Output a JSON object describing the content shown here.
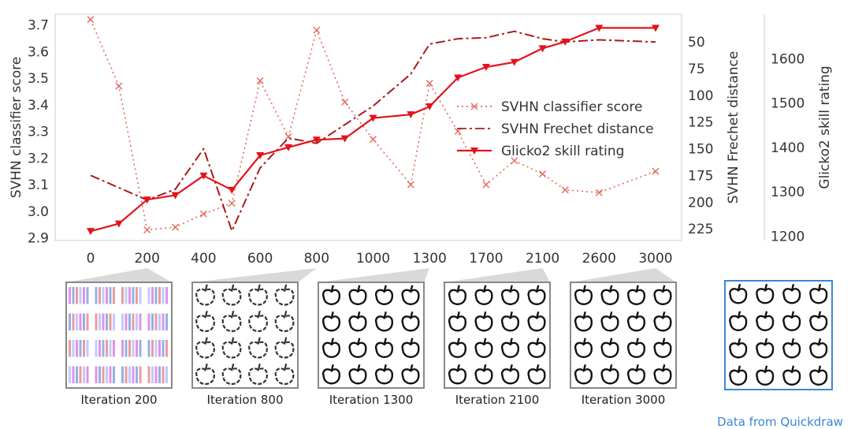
{
  "chart_data": {
    "type": "line",
    "xlabel": "",
    "x_ticks": [
      0,
      200,
      400,
      600,
      800,
      1000,
      1300,
      1700,
      2100,
      2600,
      3000
    ],
    "x_tick_labels": [
      "0",
      "200",
      "400",
      "600",
      "800",
      "1000",
      "1300",
      "1700",
      "2100",
      "2600",
      "3000"
    ],
    "axes": {
      "left": {
        "label": "SVHN classifier score",
        "ylim": [
          2.89,
          3.74
        ],
        "ticks": [
          2.9,
          3.0,
          3.1,
          3.2,
          3.3,
          3.4,
          3.5,
          3.6,
          3.7
        ],
        "tick_labels": [
          "2.9",
          "3.0",
          "3.1",
          "3.2",
          "3.3",
          "3.4",
          "3.5",
          "3.6",
          "3.7"
        ]
      },
      "right1": {
        "label": "SVHN Frechet distance",
        "ylim": [
          236,
          24
        ],
        "inverted": true,
        "ticks": [
          50,
          75,
          100,
          125,
          150,
          175,
          200,
          225
        ],
        "tick_labels": [
          "50",
          "75",
          "100",
          "125",
          "150",
          "175",
          "200",
          "225"
        ]
      },
      "right2": {
        "label": "Glicko2 skill rating",
        "ylim": [
          1190,
          1700
        ],
        "ticks": [
          1200,
          1300,
          1400,
          1500,
          1600
        ],
        "tick_labels": [
          "1200",
          "1300",
          "1400",
          "1500",
          "1600"
        ]
      }
    },
    "series": [
      {
        "name": "SVHN classifier score",
        "axis": "left",
        "style": "dotted",
        "marker": "x",
        "color": "#e8675c",
        "x": [
          0,
          100,
          200,
          300,
          400,
          500,
          600,
          700,
          800,
          900,
          1000,
          1200,
          1300,
          1500,
          1700,
          1900,
          2100,
          2300,
          2600,
          3000
        ],
        "y": [
          3.72,
          3.47,
          2.93,
          2.94,
          2.99,
          3.03,
          3.49,
          3.28,
          3.68,
          3.41,
          3.27,
          3.1,
          3.48,
          3.3,
          3.1,
          3.19,
          3.14,
          3.08,
          3.07,
          3.15
        ]
      },
      {
        "name": "SVHN Frechet distance",
        "axis": "right1",
        "style": "dashdot",
        "marker": "",
        "color": "#a81c1c",
        "x": [
          0,
          200,
          300,
          400,
          500,
          600,
          700,
          800,
          1000,
          1200,
          1300,
          1500,
          1700,
          1900,
          2100,
          2300,
          2600,
          3000
        ],
        "y": [
          175,
          198,
          188,
          150,
          227,
          168,
          140,
          145,
          110,
          80,
          52,
          47,
          46,
          40,
          47,
          50,
          48,
          50
        ]
      },
      {
        "name": "Glicko2 skill rating",
        "axis": "right2",
        "style": "solid",
        "marker": "triangle-down",
        "color": "#e3131b",
        "x": [
          0,
          100,
          200,
          300,
          400,
          500,
          600,
          700,
          800,
          900,
          1000,
          1200,
          1300,
          1500,
          1700,
          1900,
          2100,
          2300,
          2600,
          3000
        ],
        "y": [
          1211,
          1228,
          1282,
          1292,
          1336,
          1304,
          1382,
          1400,
          1417,
          1420,
          1466,
          1474,
          1492,
          1557,
          1581,
          1592,
          1623,
          1638,
          1669,
          1669
        ]
      }
    ],
    "legend": {
      "position": "center-right",
      "entries": [
        "SVHN classifier score",
        "SVHN Frechet distance",
        "Glicko2 skill rating"
      ]
    }
  },
  "thumbnails": [
    {
      "caption": "Iteration 200",
      "iteration": 200,
      "kind": "noise"
    },
    {
      "caption": "Iteration 800",
      "iteration": 800,
      "kind": "blurry-apples"
    },
    {
      "caption": "Iteration 1300",
      "iteration": 1300,
      "kind": "apples"
    },
    {
      "caption": "Iteration 2100",
      "iteration": 2100,
      "kind": "apples"
    },
    {
      "caption": "Iteration 3000",
      "iteration": 3000,
      "kind": "apples"
    },
    {
      "caption": "Data from Quickdraw",
      "iteration": null,
      "kind": "real-apples"
    }
  ],
  "colors": {
    "score": "#e8675c",
    "frechet": "#a81c1c",
    "glicko": "#e3131b",
    "real_border": "#3b86d4",
    "gen_border": "#888888"
  }
}
